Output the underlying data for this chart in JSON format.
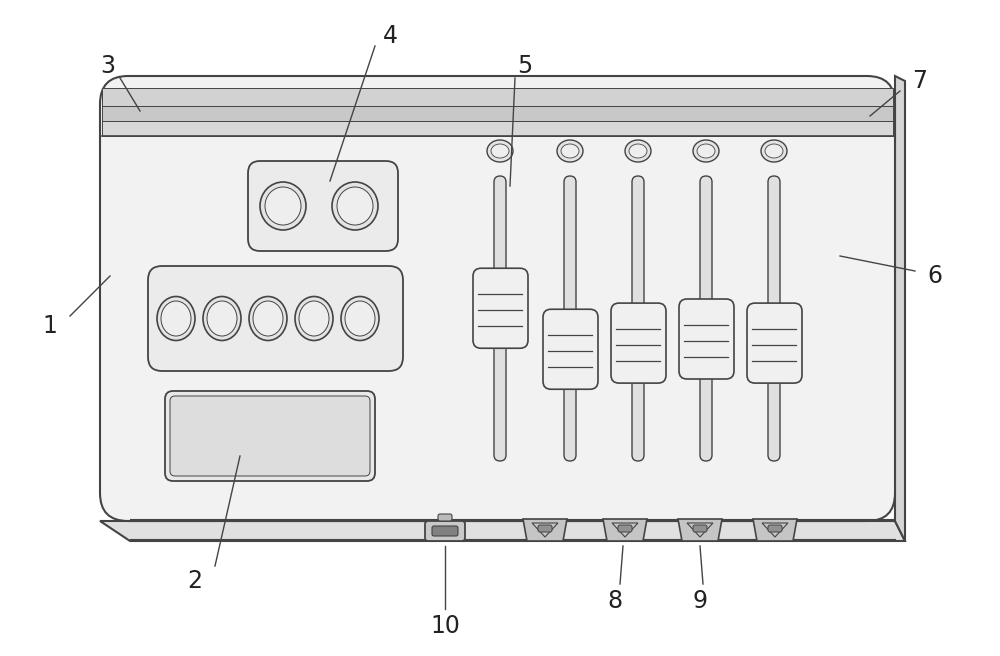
{
  "bg_color": "#ffffff",
  "line_color": "#444444",
  "light_line": "#999999",
  "fig_width": 10.0,
  "fig_height": 6.56,
  "label_fontsize": 17,
  "label_color": "#222222"
}
